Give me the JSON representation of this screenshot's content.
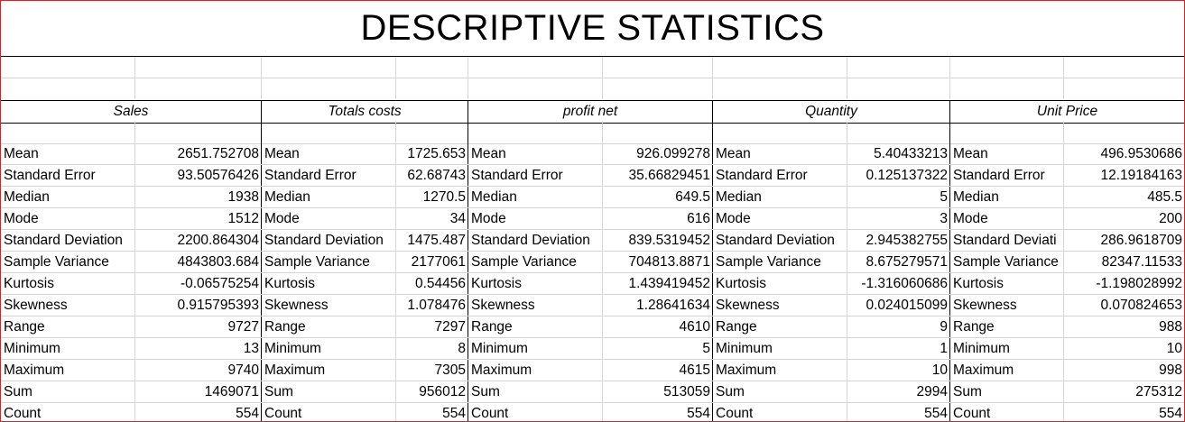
{
  "title": "DESCRIPTIVE STATISTICS",
  "headers": [
    "Sales",
    "Totals costs",
    "profit net",
    "Quantity",
    "Unit Price"
  ],
  "labels": [
    "Mean",
    "Standard Error",
    "Median",
    "Mode",
    "Standard Deviation",
    "Sample Variance",
    "Kurtosis",
    "Skewness",
    "Range",
    "Minimum",
    "Maximum",
    "Sum",
    "Count"
  ],
  "unit_price_labels": [
    "Mean",
    "Standard Error",
    "Median",
    "Mode",
    "Standard Deviati",
    "Sample Variance",
    "Kurtosis",
    "Skewness",
    "Range",
    "Minimum",
    "Maximum",
    "Sum",
    "Count"
  ],
  "columns": {
    "sales": [
      "2651.752708",
      "93.50576426",
      "1938",
      "1512",
      "2200.864304",
      "4843803.684",
      "-0.06575254",
      "0.915795393",
      "9727",
      "13",
      "9740",
      "1469071",
      "554"
    ],
    "totals_costs": [
      "1725.653",
      "62.68743",
      "1270.5",
      "34",
      "1475.487",
      "2177061",
      "0.54456",
      "1.078476",
      "7297",
      "8",
      "7305",
      "956012",
      "554"
    ],
    "profit_net": [
      "926.099278",
      "35.66829451",
      "649.5",
      "616",
      "839.5319452",
      "704813.8871",
      "1.439419452",
      "1.28641634",
      "4610",
      "5",
      "4615",
      "513059",
      "554"
    ],
    "quantity": [
      "5.40433213",
      "0.125137322",
      "5",
      "3",
      "2.945382755",
      "8.675279571",
      "-1.316060686",
      "0.024015099",
      "9",
      "1",
      "10",
      "2994",
      "554"
    ],
    "unit_price": [
      "496.9530686",
      "12.19184163",
      "485.5",
      "200",
      "286.9618709",
      "82347.11533",
      "-1.198028992",
      "0.070824653",
      "988",
      "10",
      "998",
      "275312",
      "554"
    ]
  }
}
